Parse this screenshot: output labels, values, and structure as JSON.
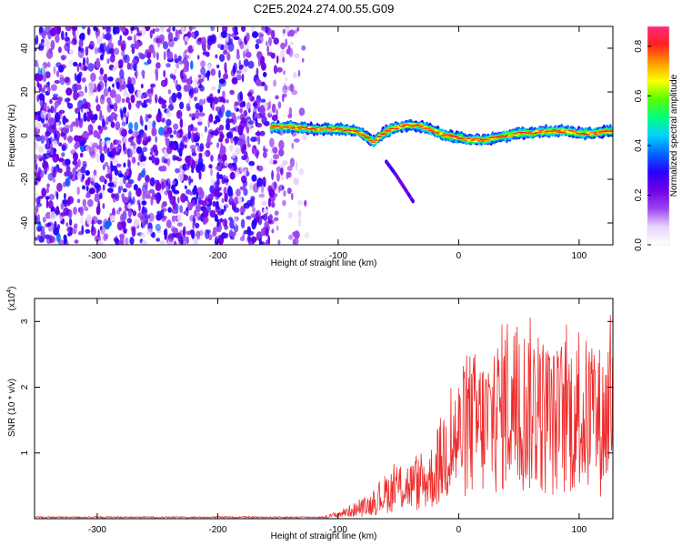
{
  "title": "C2E5.2024.274.00.55.G09",
  "chart_data": [
    {
      "type": "heatmap",
      "name": "spectrogram",
      "xlabel": "Height of straight line (km)",
      "ylabel": "Frequency (Hz)",
      "xlim": [
        -352,
        128
      ],
      "ylim": [
        -50,
        50
      ],
      "xticks": [
        -300,
        -200,
        -100,
        0,
        100
      ],
      "xtick_labels": [
        "-300",
        "-200",
        "-100",
        "0",
        "100"
      ],
      "yticks": [
        -40,
        -20,
        0,
        20,
        40
      ],
      "ytick_labels": [
        "-40",
        "-20",
        "0",
        "20",
        "40"
      ],
      "noise_region_km": [
        -352,
        -140
      ],
      "noise_fade_km": [
        -170,
        -122
      ],
      "signal_band": {
        "start_km": -155,
        "centerline_km": [
          -155,
          -140,
          -120,
          -100,
          -85,
          -75,
          -70,
          -65,
          -60,
          -50,
          -40,
          -30,
          -20,
          -10,
          0,
          10,
          20,
          30,
          40,
          50,
          60,
          70,
          80,
          90,
          100,
          110,
          125
        ],
        "centerline_hz": [
          4,
          4,
          3,
          3,
          2,
          -1,
          -3,
          0,
          2,
          4,
          5,
          4,
          2,
          0,
          -1,
          -2,
          -2,
          -1,
          0,
          1,
          1,
          2,
          2,
          2,
          1,
          1,
          2
        ]
      },
      "secondary_trace": {
        "km": [
          -60,
          -52,
          -45,
          -38
        ],
        "hz": [
          -12,
          -18,
          -24,
          -30
        ]
      },
      "colorbar": {
        "label": "Normalized spectral amplitude",
        "range": [
          0,
          0.88
        ],
        "ticks": [
          0.0,
          0.2,
          0.4,
          0.6,
          0.8
        ],
        "tick_labels": [
          "0.0",
          "0.2",
          "0.4",
          "0.6",
          "0.8"
        ],
        "colors": [
          "#ffffff",
          "#e8d4fa",
          "#9b42f0",
          "#6f00e6",
          "#2a00ff",
          "#0066ff",
          "#00d2ff",
          "#00ff7f",
          "#55ff00",
          "#ffff00",
          "#ff9a00",
          "#ff2020",
          "#ff2a7a"
        ]
      }
    },
    {
      "type": "line",
      "name": "snr",
      "xlabel": "Height of straight line (km)",
      "ylabel": "SNR (10 * v/v)",
      "y_multiplier_label": "(x10",
      "y_multiplier_exp": "4",
      "xlim": [
        -352,
        128
      ],
      "ylim": [
        0,
        3.35
      ],
      "xticks": [
        -300,
        -200,
        -100,
        0,
        100
      ],
      "xtick_labels": [
        "-300",
        "-200",
        "-100",
        "0",
        "100"
      ],
      "yticks": [
        1,
        2,
        3
      ],
      "ytick_labels": [
        "1",
        "2",
        "3"
      ],
      "color": "#ee2b2b",
      "envelope_km": [
        -352,
        -140,
        -110,
        -100,
        -80,
        -70,
        -60,
        -50,
        -40,
        -30,
        -20,
        -10,
        0,
        10,
        20,
        30,
        40,
        50,
        60,
        70,
        80,
        90,
        100,
        110,
        120,
        128
      ],
      "envelope_snr": [
        0.02,
        0.02,
        0.05,
        0.12,
        0.3,
        0.42,
        0.7,
        0.85,
        0.9,
        0.95,
        1.2,
        1.9,
        2.2,
        2.6,
        2.5,
        2.7,
        3.2,
        2.9,
        3.1,
        2.8,
        2.6,
        2.9,
        2.7,
        2.8,
        2.6,
        3.3
      ]
    }
  ]
}
